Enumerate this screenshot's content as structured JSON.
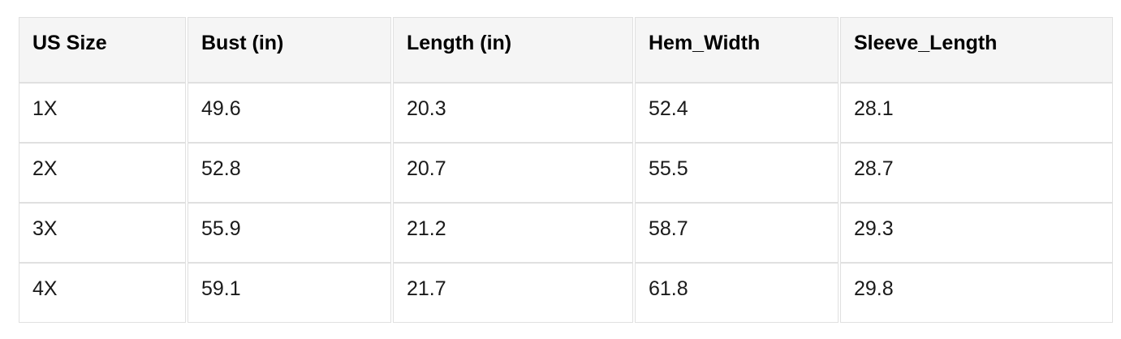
{
  "page": {
    "background": "#ffffff"
  },
  "table": {
    "title": "size-chart",
    "header_bg": "#f5f5f5",
    "border_color": "#e0e0e0",
    "header_text_color": "#000000",
    "cell_text_color": "#1a1a1a",
    "columns": [
      "US Size",
      "Bust (in)",
      "Length (in)",
      "Hem_Width",
      "Sleeve_Length"
    ],
    "rows": [
      [
        "1X",
        "49.6",
        "20.3",
        "52.4",
        "28.1"
      ],
      [
        "2X",
        "52.8",
        "20.7",
        "55.5",
        "28.7"
      ],
      [
        "3X",
        "55.9",
        "21.2",
        "58.7",
        "29.3"
      ],
      [
        "4X",
        "59.1",
        "21.7",
        "61.8",
        "29.8"
      ]
    ]
  }
}
